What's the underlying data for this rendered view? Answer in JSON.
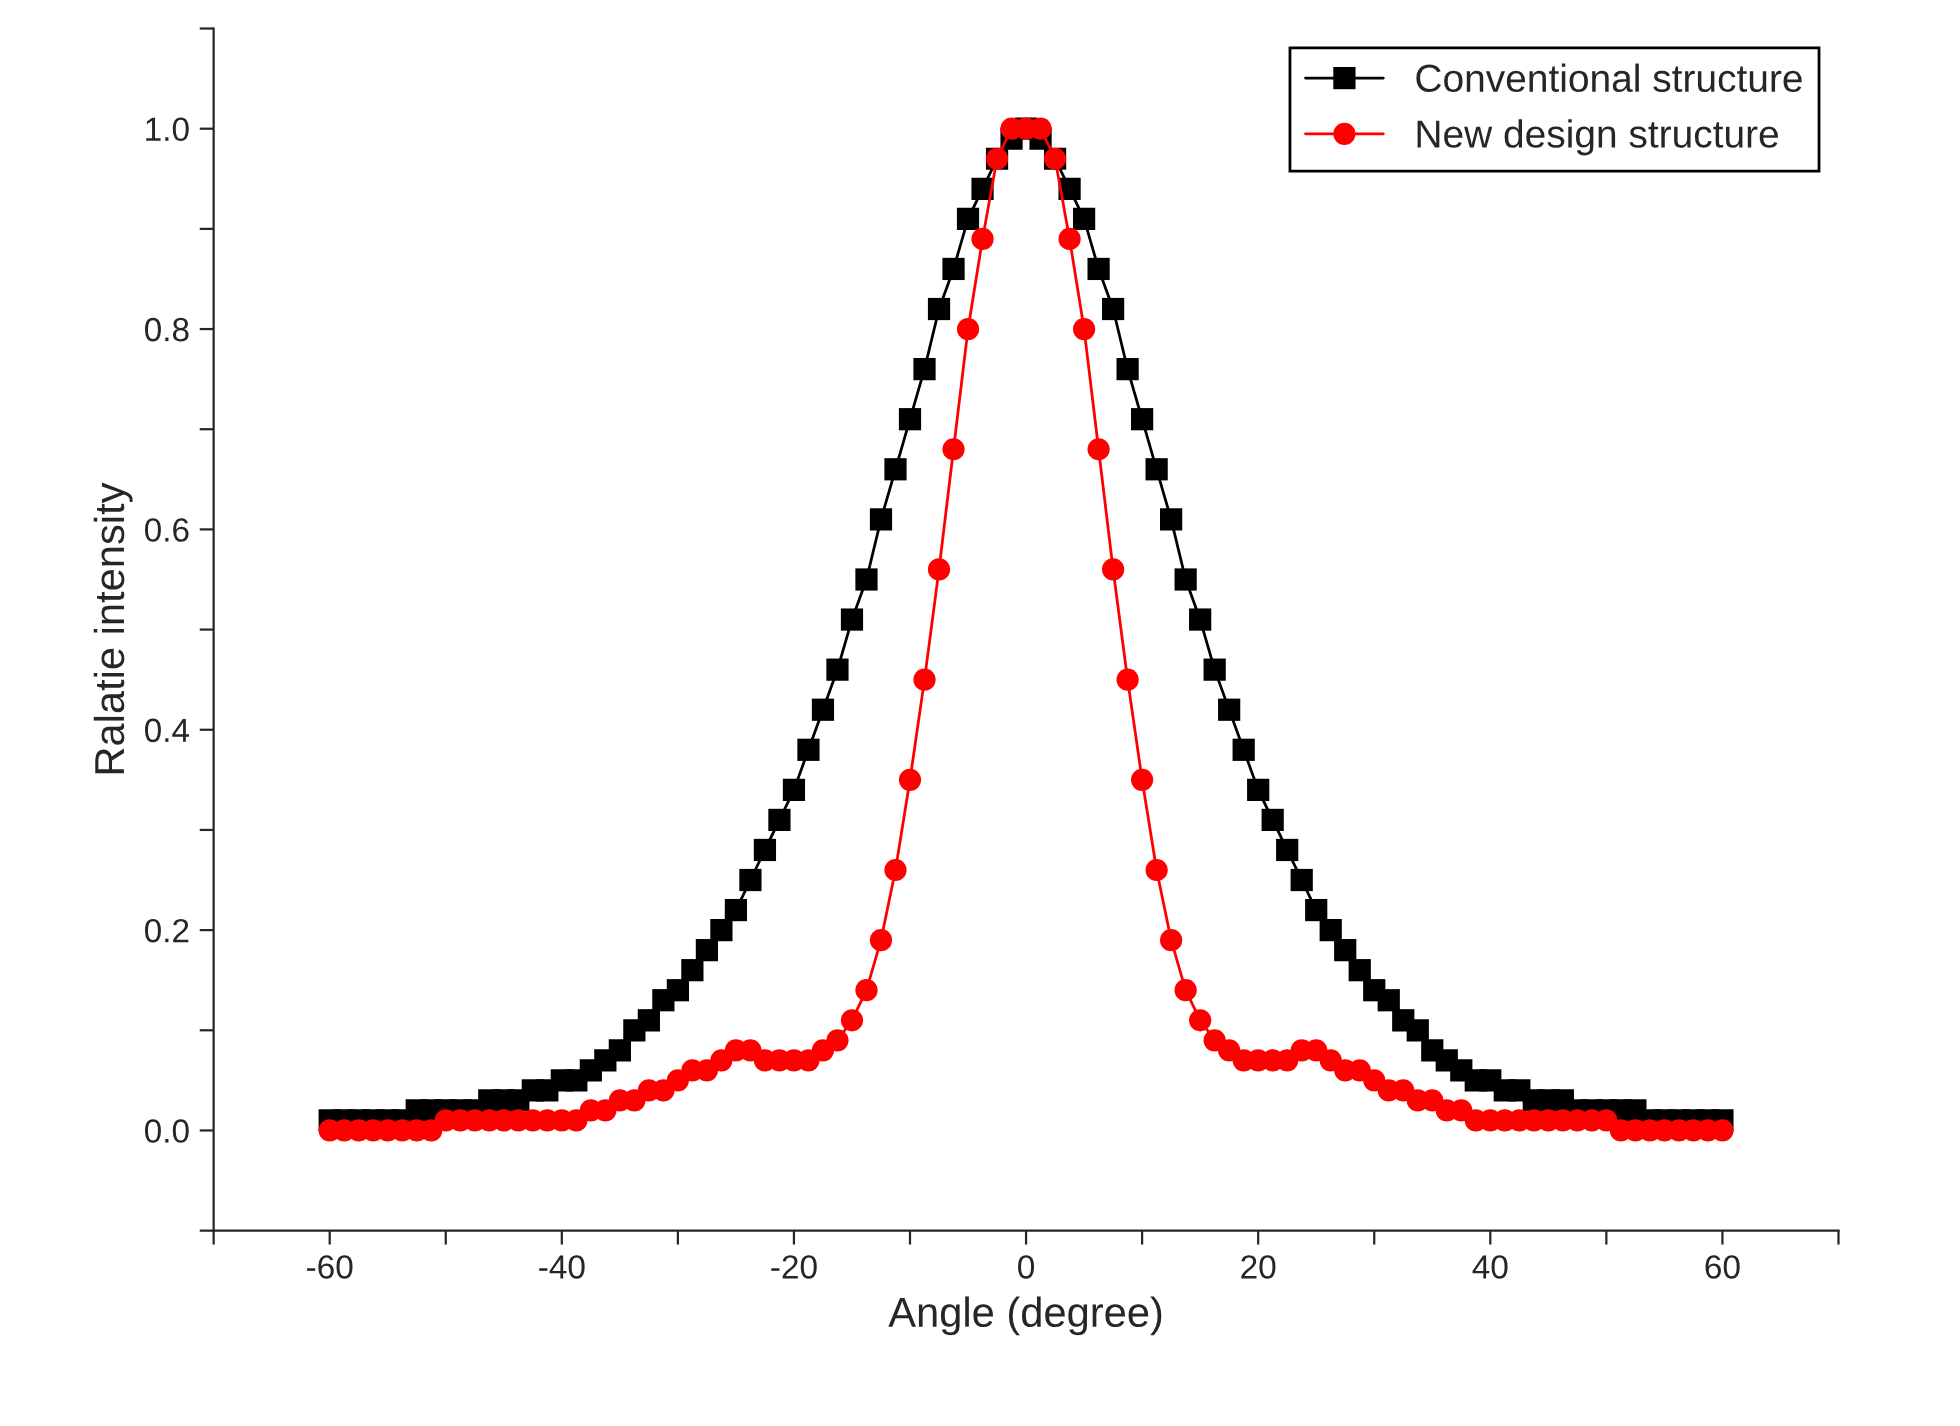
{
  "chart_data": {
    "type": "line",
    "xlabel": "Angle (degree)",
    "ylabel": "Ralatie intensity",
    "x": [
      -60,
      -58.75,
      -57.5,
      -56.25,
      -55,
      -53.75,
      -52.5,
      -51.25,
      -50,
      -48.75,
      -47.5,
      -46.25,
      -45,
      -43.75,
      -42.5,
      -41.25,
      -40,
      -38.75,
      -37.5,
      -36.25,
      -35,
      -33.75,
      -32.5,
      -31.25,
      -30,
      -28.75,
      -27.5,
      -26.25,
      -25,
      -23.75,
      -22.5,
      -21.25,
      -20,
      -18.75,
      -17.5,
      -16.25,
      -15,
      -13.75,
      -12.5,
      -11.25,
      -10,
      -8.75,
      -7.5,
      -6.25,
      -5,
      -3.75,
      -2.5,
      -1.25,
      0,
      1.25,
      2.5,
      3.75,
      5,
      6.25,
      7.5,
      8.75,
      10,
      11.25,
      12.5,
      13.75,
      15,
      16.25,
      17.5,
      18.75,
      20,
      21.25,
      22.5,
      23.75,
      25,
      26.25,
      27.5,
      28.75,
      30,
      31.25,
      32.5,
      33.75,
      35,
      36.25,
      37.5,
      38.75,
      40,
      41.25,
      42.5,
      43.75,
      45,
      46.25,
      47.5,
      48.75,
      50,
      51.25,
      52.5,
      53.75,
      55,
      56.25,
      57.5,
      58.75,
      60
    ],
    "series": [
      {
        "name": "Conventional structure",
        "color": "#000000",
        "marker": "square",
        "values": [
          0.01,
          0.01,
          0.01,
          0.01,
          0.01,
          0.01,
          0.02,
          0.02,
          0.02,
          0.02,
          0.02,
          0.03,
          0.03,
          0.03,
          0.04,
          0.04,
          0.05,
          0.05,
          0.06,
          0.07,
          0.08,
          0.1,
          0.11,
          0.13,
          0.14,
          0.16,
          0.18,
          0.2,
          0.22,
          0.25,
          0.28,
          0.31,
          0.34,
          0.38,
          0.42,
          0.46,
          0.51,
          0.55,
          0.61,
          0.66,
          0.71,
          0.76,
          0.82,
          0.86,
          0.91,
          0.94,
          0.97,
          0.99,
          1.0,
          0.99,
          0.97,
          0.94,
          0.91,
          0.86,
          0.82,
          0.76,
          0.71,
          0.66,
          0.61,
          0.55,
          0.51,
          0.46,
          0.42,
          0.38,
          0.34,
          0.31,
          0.28,
          0.25,
          0.22,
          0.2,
          0.18,
          0.16,
          0.14,
          0.13,
          0.11,
          0.1,
          0.08,
          0.07,
          0.06,
          0.05,
          0.05,
          0.04,
          0.04,
          0.03,
          0.03,
          0.03,
          0.02,
          0.02,
          0.02,
          0.02,
          0.02,
          0.01,
          0.01,
          0.01,
          0.01,
          0.01,
          0.01
        ]
      },
      {
        "name": "New design structure",
        "color": "#ff0000",
        "marker": "circle",
        "values": [
          0.0,
          0.0,
          0.0,
          0.0,
          0.0,
          0.0,
          0.0,
          0.0,
          0.01,
          0.01,
          0.01,
          0.01,
          0.01,
          0.01,
          0.01,
          0.01,
          0.01,
          0.01,
          0.02,
          0.02,
          0.03,
          0.03,
          0.04,
          0.04,
          0.05,
          0.06,
          0.06,
          0.07,
          0.08,
          0.08,
          0.07,
          0.07,
          0.07,
          0.07,
          0.08,
          0.09,
          0.11,
          0.14,
          0.19,
          0.26,
          0.35,
          0.45,
          0.56,
          0.68,
          0.8,
          0.89,
          0.97,
          1.0,
          1.0,
          1.0,
          0.97,
          0.89,
          0.8,
          0.68,
          0.56,
          0.45,
          0.35,
          0.26,
          0.19,
          0.14,
          0.11,
          0.09,
          0.08,
          0.07,
          0.07,
          0.07,
          0.07,
          0.08,
          0.08,
          0.07,
          0.06,
          0.06,
          0.05,
          0.04,
          0.04,
          0.03,
          0.03,
          0.02,
          0.02,
          0.01,
          0.01,
          0.01,
          0.01,
          0.01,
          0.01,
          0.01,
          0.01,
          0.01,
          0.01,
          0.0,
          0.0,
          0.0,
          0.0,
          0.0,
          0.0,
          0.0,
          0.0
        ]
      }
    ],
    "xlim": [
      -70,
      70
    ],
    "xticks": [
      {
        "value": -70,
        "label": null
      },
      -60,
      {
        "value": -50,
        "label": null
      },
      -40,
      {
        "value": -30,
        "label": null
      },
      -20,
      {
        "value": -10,
        "label": null
      },
      0,
      {
        "value": 10,
        "label": null
      },
      20,
      {
        "value": 30,
        "label": null
      },
      40,
      {
        "value": 50,
        "label": null
      },
      60,
      {
        "value": 70,
        "label": null
      }
    ],
    "ylim": [
      -0.1,
      1.1
    ],
    "yticks": [
      {
        "value": -0.1,
        "label": null
      },
      {
        "value": 0,
        "label": "0.0"
      },
      {
        "value": 0.1,
        "label": null
      },
      {
        "value": 0.2,
        "label": "0.2"
      },
      {
        "value": 0.3,
        "label": null
      },
      {
        "value": 0.4,
        "label": "0.4"
      },
      {
        "value": 0.5,
        "label": null
      },
      {
        "value": 0.6,
        "label": "0.6"
      },
      {
        "value": 0.7,
        "label": null
      },
      {
        "value": 0.8,
        "label": "0.8"
      },
      {
        "value": 0.9,
        "label": null
      },
      {
        "value": 1.0,
        "label": "1.0"
      },
      {
        "value": 1.1,
        "label": null
      }
    ],
    "grid": false,
    "legend": "top right",
    "line_style": "solid"
  }
}
